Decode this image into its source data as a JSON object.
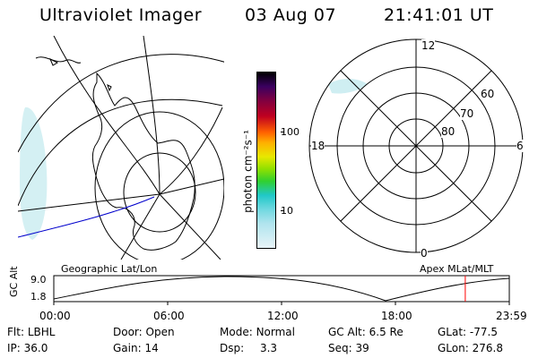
{
  "header": {
    "title": "Ultraviolet Imager",
    "date": "03 Aug 07",
    "time": "21:41:01 UT"
  },
  "colorbar": {
    "unit_label": "photon cm⁻²s⁻¹",
    "ticks": [
      "100",
      "10"
    ]
  },
  "polar_plot": {
    "mlt_labels": [
      "12",
      "18",
      "6",
      "0"
    ],
    "mlat_labels": [
      "60",
      "70",
      "80"
    ]
  },
  "projection_labels": {
    "left": "Geographic Lat/Lon",
    "right": "Apex MLat/MLT"
  },
  "altitude_plot": {
    "ylabel": "GC Alt",
    "y_max_label": "9.0",
    "y_min_label": "1.8",
    "x_ticks": [
      "00:00",
      "06:00",
      "12:00",
      "18:00",
      "23:59"
    ],
    "current_time_hours": 21.68,
    "line_color": "#ff0000"
  },
  "info": {
    "row1": [
      {
        "label": "Flt:",
        "value": "LBHL"
      },
      {
        "label": "Door:",
        "value": "Open"
      },
      {
        "label": "Mode:",
        "value": "Normal"
      },
      {
        "label": "GC Alt:",
        "value": "6.5 Re"
      },
      {
        "label": "GLat:",
        "value": "-77.5"
      }
    ],
    "row2": [
      {
        "label": "IP:",
        "value": "36.0"
      },
      {
        "label": "Gain:",
        "value": "14"
      },
      {
        "label": "Dsp:",
        "value": "3.3"
      },
      {
        "label": "Seq:",
        "value": "39"
      },
      {
        "label": "GLon:",
        "value": "276.8"
      }
    ]
  },
  "colors": {
    "aurora": "#bfe8ee",
    "track": "#0000cc"
  }
}
